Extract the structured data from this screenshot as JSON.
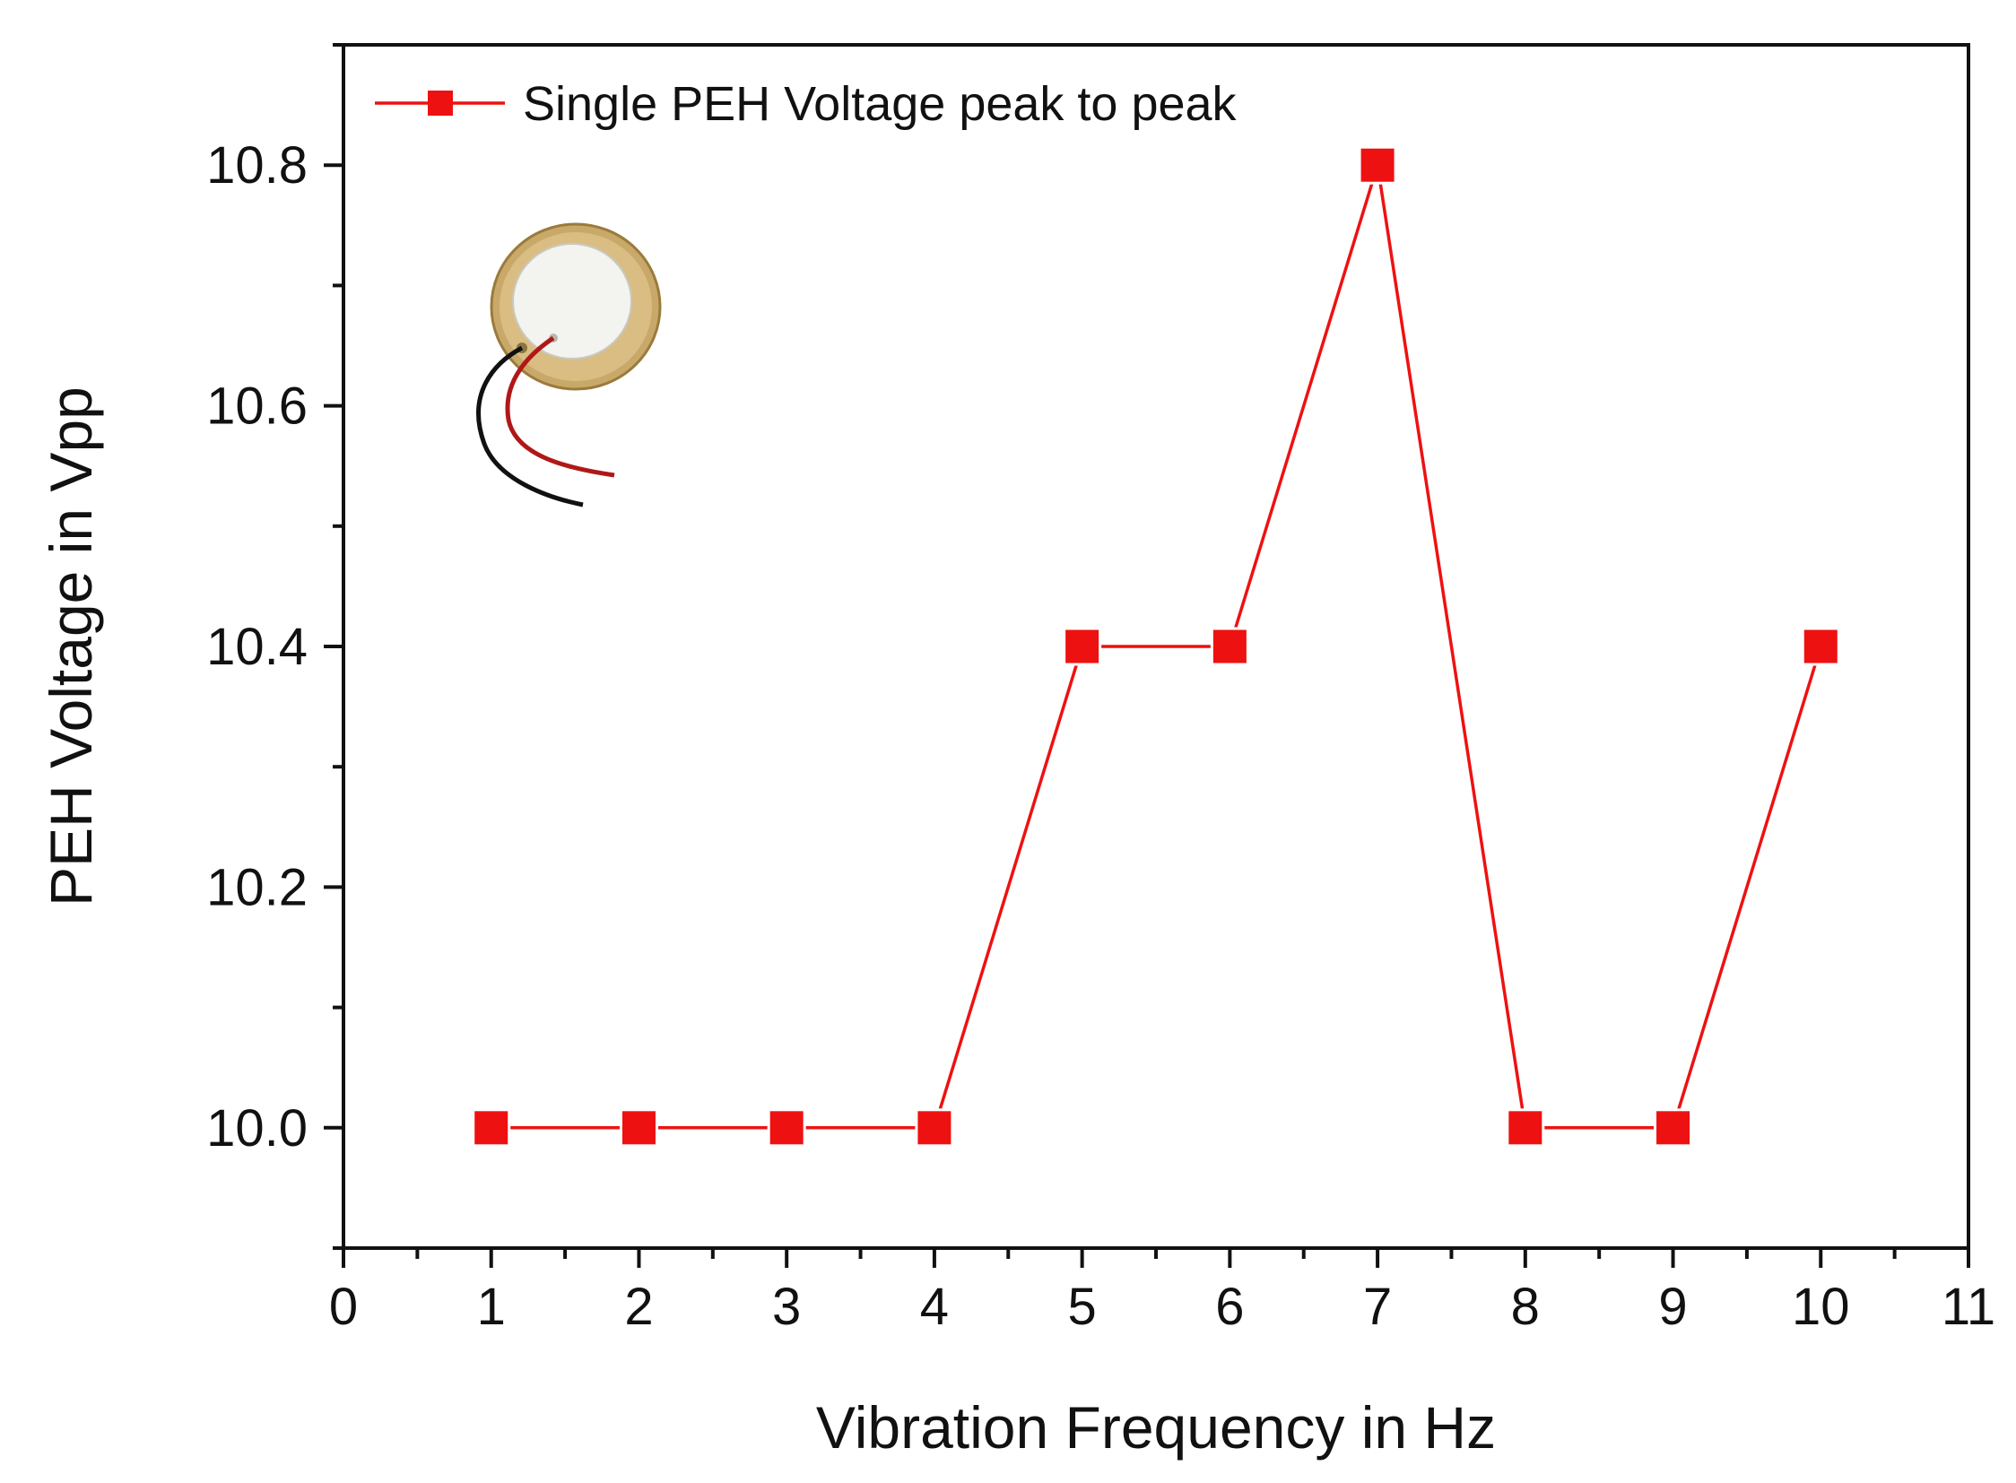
{
  "chart_data": {
    "type": "line",
    "title": "",
    "xlabel": "Vibration Frequency in Hz",
    "ylabel": "PEH Voltage in Vpp",
    "xlim": [
      0,
      11
    ],
    "ylim": [
      9.9,
      10.9
    ],
    "x_ticks": [
      "0",
      "1",
      "2",
      "3",
      "4",
      "5",
      "6",
      "7",
      "8",
      "9",
      "10",
      "11"
    ],
    "y_ticks": [
      "10.0",
      "10.2",
      "10.4",
      "10.6",
      "10.8"
    ],
    "grid": false,
    "legend_position": "top-left",
    "series": [
      {
        "name": "Single PEH Voltage peak to peak",
        "color": "#ee1111",
        "marker": "square",
        "x": [
          1,
          2,
          3,
          4,
          5,
          6,
          7,
          8,
          9,
          10
        ],
        "values": [
          10.0,
          10.0,
          10.0,
          10.0,
          10.4,
          10.4,
          10.8,
          10.0,
          10.0,
          10.4
        ]
      }
    ],
    "inset_image": "piezoelectric-disc-with-wires"
  }
}
